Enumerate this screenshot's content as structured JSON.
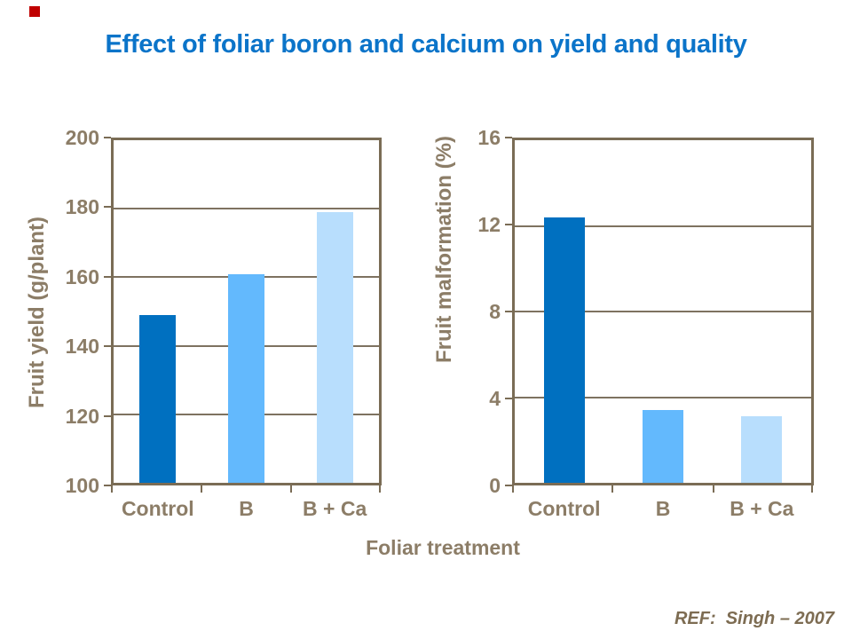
{
  "slide": {
    "title": "Effect of foliar boron and calcium on yield and quality",
    "x_axis_title": "Foliar treatment",
    "reference": "REF:  Singh – 2007"
  },
  "colors": {
    "title_blue": "#0B74C9",
    "corner_accent_red": "#C00000",
    "bar_control": "#0070C0",
    "bar_b": "#63B9FD",
    "bar_b_ca": "#B8DEFD",
    "axis_text_brown": "#8C7D67",
    "axis_line_brown": "#7A6C55",
    "gridline_brown": "#7E7260",
    "reference_brown": "#7D6C52"
  },
  "chart_data": [
    {
      "type": "bar",
      "categories": [
        "Control",
        "B",
        "B + Ca"
      ],
      "values": [
        149,
        161,
        179
      ],
      "ylabel": "Fruit yield (g/plant)",
      "xlabel": "Foliar treatment",
      "ylim": [
        100,
        200
      ],
      "yticks": [
        100,
        120,
        140,
        160,
        180,
        200
      ],
      "grid": true,
      "legend": false,
      "bar_colors": [
        "#0070C0",
        "#63B9FD",
        "#B8DEFD"
      ]
    },
    {
      "type": "bar",
      "categories": [
        "Control",
        "B",
        "B + Ca"
      ],
      "values": [
        12.4,
        3.4,
        3.1
      ],
      "ylabel": "Fruit malformation (%)",
      "xlabel": "Foliar treatment",
      "ylim": [
        0,
        16
      ],
      "yticks": [
        0,
        4,
        8,
        12,
        16
      ],
      "grid": true,
      "legend": false,
      "bar_colors": [
        "#0070C0",
        "#63B9FD",
        "#B8DEFD"
      ]
    }
  ]
}
